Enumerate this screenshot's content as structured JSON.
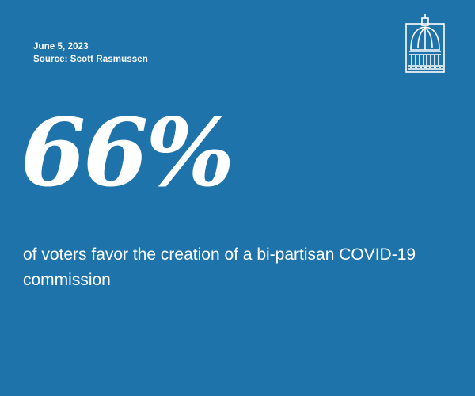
{
  "meta": {
    "date": "June 5, 2023",
    "source": "Source: Scott Rasmussen"
  },
  "logo": {
    "icon": "capitol-dome-icon"
  },
  "stat": {
    "value": "66%",
    "caption": "of voters favor the creation of a bi-partisan COVID-19 commission"
  },
  "colors": {
    "background": "#1f73ab",
    "text": "#ffffff"
  }
}
